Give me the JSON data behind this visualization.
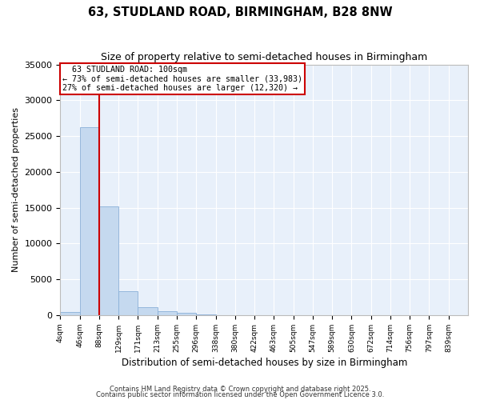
{
  "title": "63, STUDLAND ROAD, BIRMINGHAM, B28 8NW",
  "subtitle": "Size of property relative to semi-detached houses in Birmingham",
  "xlabel": "Distribution of semi-detached houses by size in Birmingham",
  "ylabel": "Number of semi-detached properties",
  "property_label": "63 STUDLAND ROAD: 100sqm",
  "pct_smaller": 73,
  "pct_larger": 27,
  "n_smaller": 33983,
  "n_larger": 12320,
  "bin_labels": [
    "4sqm",
    "46sqm",
    "88sqm",
    "129sqm",
    "171sqm",
    "213sqm",
    "255sqm",
    "296sqm",
    "338sqm",
    "380sqm",
    "422sqm",
    "463sqm",
    "505sqm",
    "547sqm",
    "589sqm",
    "630sqm",
    "672sqm",
    "714sqm",
    "756sqm",
    "797sqm",
    "839sqm"
  ],
  "bin_values": [
    400,
    26200,
    15200,
    3300,
    1100,
    600,
    350,
    150,
    0,
    0,
    0,
    0,
    0,
    0,
    0,
    0,
    0,
    0,
    0,
    0,
    0
  ],
  "bar_color": "#c5d9ef",
  "bar_edge_color": "#8ab0d8",
  "vline_color": "#cc0000",
  "vline_x_bin": 2,
  "box_edge_color": "#cc0000",
  "plot_bg_color": "#e8f0fa",
  "fig_bg_color": "#ffffff",
  "grid_color": "#ffffff",
  "footer1": "Contains HM Land Registry data © Crown copyright and database right 2025.",
  "footer2": "Contains public sector information licensed under the Open Government Licence 3.0.",
  "ylim": [
    0,
    35000
  ],
  "yticks": [
    0,
    5000,
    10000,
    15000,
    20000,
    25000,
    30000,
    35000
  ]
}
